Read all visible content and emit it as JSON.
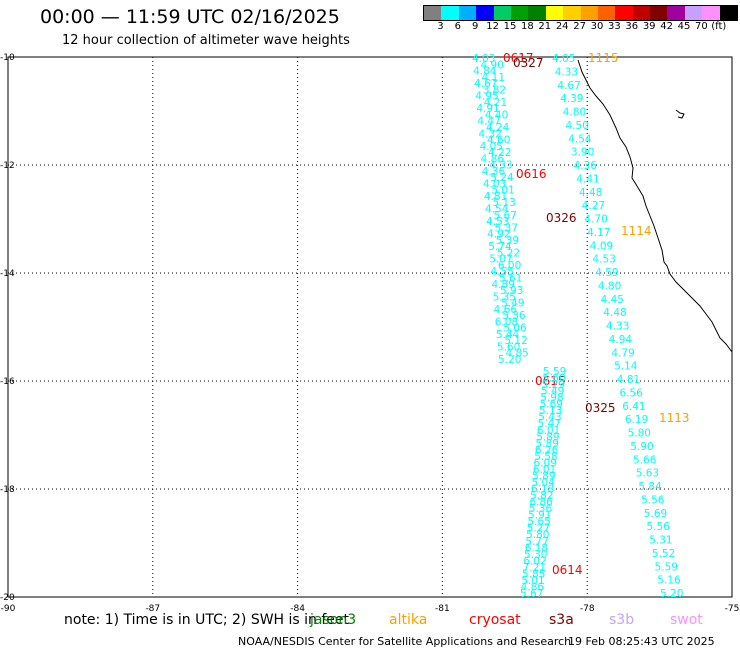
{
  "header": {
    "title": "00:00 — 11:59 UTC 02/16/2025",
    "subtitle": "12 hour collection of altimeter wave heights"
  },
  "colorbar": {
    "colors": [
      "#808080",
      "#00ffff",
      "#00b0ff",
      "#0000ff",
      "#00cc66",
      "#00a000",
      "#008000",
      "#ffff00",
      "#ffd000",
      "#ffa000",
      "#ff6000",
      "#ff0000",
      "#c00000",
      "#800000",
      "#a000a0",
      "#c8a0ff",
      "#ff90ff",
      "#000000"
    ],
    "labels": [
      "3",
      "6",
      "9",
      "12",
      "15",
      "18",
      "21",
      "24",
      "27",
      "30",
      "33",
      "36",
      "39",
      "42",
      "45",
      "70",
      "(ft)"
    ]
  },
  "axes": {
    "lon_labels": [
      "-90",
      "-87",
      "-84",
      "-81",
      "-78",
      "-75"
    ],
    "lat_labels": [
      "-10",
      "-12",
      "-14",
      "-16",
      "-18",
      "-20"
    ]
  },
  "passes": [
    {
      "label": "0617",
      "color": "#ff0000"
    },
    {
      "label": "0327",
      "color": "#800000"
    },
    {
      "label": "1115",
      "color": "#ffa000"
    },
    {
      "label": "0616",
      "color": "#ff0000"
    },
    {
      "label": "0326",
      "color": "#800000"
    },
    {
      "label": "1114",
      "color": "#ffa000"
    },
    {
      "label": "0615",
      "color": "#ff0000"
    },
    {
      "label": "0325",
      "color": "#800000"
    },
    {
      "label": "1113",
      "color": "#ffa000"
    },
    {
      "label": "0614",
      "color": "#ff0000"
    }
  ],
  "tracks": {
    "track_a": {
      "color": "#00ffff",
      "values": [
        "4.03",
        "4.90",
        "4.84",
        "4.11",
        "4.67",
        "3.82",
        "4.95",
        "4.21",
        "4.91",
        "4.40",
        "4.47",
        "4.24",
        "4.32",
        "4.60",
        "4.05",
        "4.22",
        "4.86",
        "4.33",
        "4.36",
        "5.24",
        "4.03",
        "5.01",
        "4.81",
        "5.13",
        "4.54",
        "5.67",
        "4.53",
        "5.37",
        "4.92",
        "5.39",
        "5.74",
        "5.22",
        "5.07",
        "6.00",
        "4.55",
        "5.61",
        "4.89",
        "5.93",
        "5.35",
        "5.49",
        "4.66",
        "5.36",
        "6.08",
        "5.06",
        "5.44",
        "5.12",
        "5.60",
        "4.85",
        "5.20"
      ]
    },
    "track_b": {
      "color": "#00ffff",
      "values": [
        "4.05",
        "4.33",
        "4.67",
        "4.39",
        "4.80",
        "4.50",
        "4.54",
        "3.90",
        "4.36",
        "4.41",
        "4.48",
        "4.27",
        "4.70",
        "4.17",
        "4.09",
        "4.53",
        "4.59",
        "4.80",
        "4.45",
        "4.48",
        "4.33",
        "4.94",
        "4.79",
        "5.14",
        "4.81",
        "6.56",
        "6.41",
        "6.19",
        "5.80",
        "5.90",
        "5.66",
        "5.63",
        "5.84",
        "5.56",
        "5.69",
        "5.56",
        "5.31",
        "5.52",
        "5.59",
        "5.16",
        "5.20"
      ]
    },
    "track_c": {
      "color": "#00ffff",
      "values": [
        "5.59",
        "5.60",
        "5.29",
        "5.49",
        "5.98",
        "5.69",
        "5.13",
        "5.43",
        "5.47",
        "6.01",
        "5.89",
        "5.89",
        "6.26",
        "5.58",
        "6.09",
        "6.01",
        "5.89",
        "5.04",
        "6.18",
        "5.82",
        "6.86",
        "5.36",
        "5.91",
        "5.65",
        "5.27",
        "5.80",
        "5.77",
        "6.18",
        "5.30",
        "6.02",
        "7.21",
        "5.85",
        "5.01",
        "4.86",
        "5.67"
      ]
    }
  },
  "legend": {
    "note": "note: 1) Time is in UTC; 2) SWH is in feet",
    "missions": [
      {
        "name": "jason3",
        "color": "#008000"
      },
      {
        "name": "altika",
        "color": "#ffa000"
      },
      {
        "name": "cryosat",
        "color": "#ff0000"
      },
      {
        "name": "s3a",
        "color": "#800000"
      },
      {
        "name": "s3b",
        "color": "#c8a0ff"
      },
      {
        "name": "swot",
        "color": "#ff90ff"
      }
    ]
  },
  "footer": {
    "credit": "NOAA/NESDIS Center for Satellite Applications and Research",
    "timestamp": "19 Feb 08:25:43 UTC 2025"
  }
}
